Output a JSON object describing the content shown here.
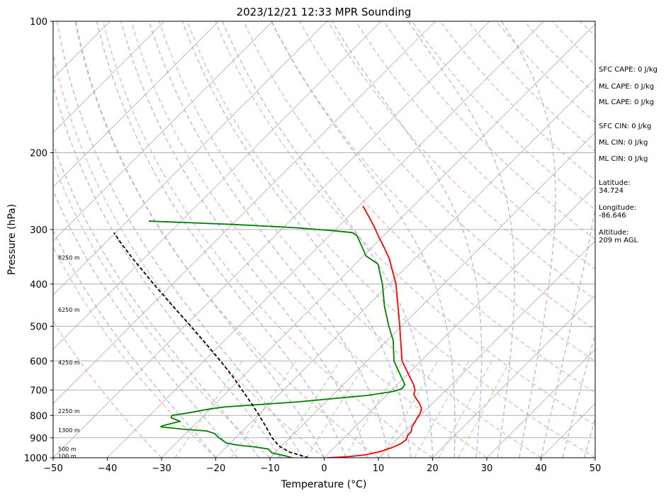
{
  "chart_data": {
    "type": "line",
    "title": "2023/12/21 12:33 MPR Sounding",
    "xlabel": "Temperature (°C)",
    "ylabel": "Pressure (hPa)",
    "xlim": [
      -50,
      50
    ],
    "ylim": [
      1000,
      100
    ],
    "y_scale": "log",
    "grid": true,
    "x_ticks": [
      "−50",
      "−40",
      "−30",
      "−20",
      "−10",
      "0",
      "10",
      "20",
      "30",
      "40",
      "50"
    ],
    "y_ticks": [
      {
        "value": 100,
        "label": "100"
      },
      {
        "value": 200,
        "label": "200"
      },
      {
        "value": 300,
        "label": "300"
      },
      {
        "value": 400,
        "label": "400"
      },
      {
        "value": 500,
        "label": "500"
      },
      {
        "value": 600,
        "label": "600"
      },
      {
        "value": 700,
        "label": "700"
      },
      {
        "value": 800,
        "label": "800"
      },
      {
        "value": 900,
        "label": "900"
      },
      {
        "value": 1000,
        "label": "1000"
      }
    ],
    "height_labels": [
      {
        "pressure": 990,
        "label": "100 m"
      },
      {
        "pressure": 955,
        "label": "500 m"
      },
      {
        "pressure": 865,
        "label": "1300 m"
      },
      {
        "pressure": 782,
        "label": "2250 m"
      },
      {
        "pressure": 605,
        "label": "4250 m"
      },
      {
        "pressure": 458,
        "label": "6250 m"
      },
      {
        "pressure": 348,
        "label": "8250 m"
      }
    ],
    "series": [
      {
        "color": "#ff0000",
        "points": [
          {
            "p": 1000,
            "t": 0.5
          },
          {
            "p": 995,
            "t": 4
          },
          {
            "p": 985,
            "t": 7
          },
          {
            "p": 970,
            "t": 9
          },
          {
            "p": 950,
            "t": 10.5
          },
          {
            "p": 930,
            "t": 11.5
          },
          {
            "p": 910,
            "t": 11.8
          },
          {
            "p": 890,
            "t": 11.3
          },
          {
            "p": 870,
            "t": 11.2
          },
          {
            "p": 850,
            "t": 10.5
          },
          {
            "p": 830,
            "t": 10.2
          },
          {
            "p": 810,
            "t": 9.8
          },
          {
            "p": 790,
            "t": 9.5
          },
          {
            "p": 770,
            "t": 8.8
          },
          {
            "p": 750,
            "t": 7.5
          },
          {
            "p": 730,
            "t": 5.9
          },
          {
            "p": 715,
            "t": 4.8
          },
          {
            "p": 700,
            "t": 4.3
          },
          {
            "p": 680,
            "t": 3.0
          },
          {
            "p": 600,
            "t": -3.5
          },
          {
            "p": 500,
            "t": -10.3
          },
          {
            "p": 400,
            "t": -18.8
          },
          {
            "p": 350,
            "t": -24.7
          },
          {
            "p": 330,
            "t": -27.7
          },
          {
            "p": 310,
            "t": -31.0
          },
          {
            "p": 295,
            "t": -33.5
          },
          {
            "p": 280,
            "t": -36.3
          },
          {
            "p": 265,
            "t": -39.3
          }
        ]
      },
      {
        "color": "#008000",
        "points": [
          {
            "p": 1000,
            "t": -5.9
          },
          {
            "p": 990,
            "t": -7.5
          },
          {
            "p": 975,
            "t": -10.5
          },
          {
            "p": 955,
            "t": -11.9
          },
          {
            "p": 945,
            "t": -14.7
          },
          {
            "p": 935,
            "t": -18.5
          },
          {
            "p": 925,
            "t": -20.8
          },
          {
            "p": 900,
            "t": -23.1
          },
          {
            "p": 880,
            "t": -24.7
          },
          {
            "p": 868,
            "t": -26.7
          },
          {
            "p": 860,
            "t": -31.4
          },
          {
            "p": 850,
            "t": -35.8
          },
          {
            "p": 845,
            "t": -35.8
          },
          {
            "p": 835,
            "t": -34.5
          },
          {
            "p": 825,
            "t": -33.3
          },
          {
            "p": 810,
            "t": -35.6
          },
          {
            "p": 800,
            "t": -35.9
          },
          {
            "p": 790,
            "t": -33.5
          },
          {
            "p": 775,
            "t": -30.5
          },
          {
            "p": 765,
            "t": -27.8
          },
          {
            "p": 745,
            "t": -15.3
          },
          {
            "p": 720,
            "t": -3.6
          },
          {
            "p": 705,
            "t": 0.5
          },
          {
            "p": 695,
            "t": 1.6
          },
          {
            "p": 680,
            "t": 1.4
          },
          {
            "p": 600,
            "t": -5.0
          },
          {
            "p": 540,
            "t": -8.8
          },
          {
            "p": 500,
            "t": -12.3
          },
          {
            "p": 450,
            "t": -16.8
          },
          {
            "p": 400,
            "t": -21.3
          },
          {
            "p": 360,
            "t": -25.8
          },
          {
            "p": 345,
            "t": -29.5
          },
          {
            "p": 325,
            "t": -32.5
          },
          {
            "p": 310,
            "t": -34.9
          },
          {
            "p": 305,
            "t": -36.3
          },
          {
            "p": 302,
            "t": -40.0
          },
          {
            "p": 297,
            "t": -48.0
          },
          {
            "p": 292,
            "t": -60.0
          },
          {
            "p": 287,
            "t": -76.0
          }
        ]
      },
      {
        "color": "#000000",
        "dashed": true,
        "points": [
          {
            "p": 1000,
            "t": -2.9
          },
          {
            "p": 970,
            "t": -7.5
          },
          {
            "p": 940,
            "t": -10.5
          },
          {
            "p": 900,
            "t": -13.3
          },
          {
            "p": 850,
            "t": -16.4
          },
          {
            "p": 800,
            "t": -19.8
          },
          {
            "p": 750,
            "t": -23.5
          },
          {
            "p": 700,
            "t": -27.6
          },
          {
            "p": 650,
            "t": -32.0
          },
          {
            "p": 600,
            "t": -37.0
          },
          {
            "p": 550,
            "t": -42.6
          },
          {
            "p": 500,
            "t": -48.8
          },
          {
            "p": 450,
            "t": -55.8
          },
          {
            "p": 400,
            "t": -63.5
          },
          {
            "p": 350,
            "t": -72.0
          },
          {
            "p": 320,
            "t": -77.5
          },
          {
            "p": 305,
            "t": -80.3
          }
        ]
      }
    ],
    "background_lines": {
      "isotherms": {
        "color": "#b0b0b0"
      },
      "dry_adiabats": {
        "color": "#f4a6a6",
        "dashed": true
      },
      "moist_adiabats": {
        "color": "#a6a6f4",
        "dashed": true
      },
      "mixing_ratio": {
        "color": "#a6d8a6",
        "dashed": true
      }
    }
  },
  "sidebar": {
    "sfc_cape": "SFC CAPE: 0 J/kg",
    "ml_cape_1": "ML CAPE: 0 J/kg",
    "ml_cape_2": "ML CAPE: 0 J/kg",
    "sfc_cin": "SFC CIN: 0 J/kg",
    "ml_cin_1": "ML CIN: 0 J/kg",
    "ml_cin_2": "ML CIN: 0 J/kg",
    "latitude": "Latitude:\n34.724",
    "longitude": "Longitude:\n-86.646",
    "altitude": "Altitude:\n209 m AGL"
  }
}
